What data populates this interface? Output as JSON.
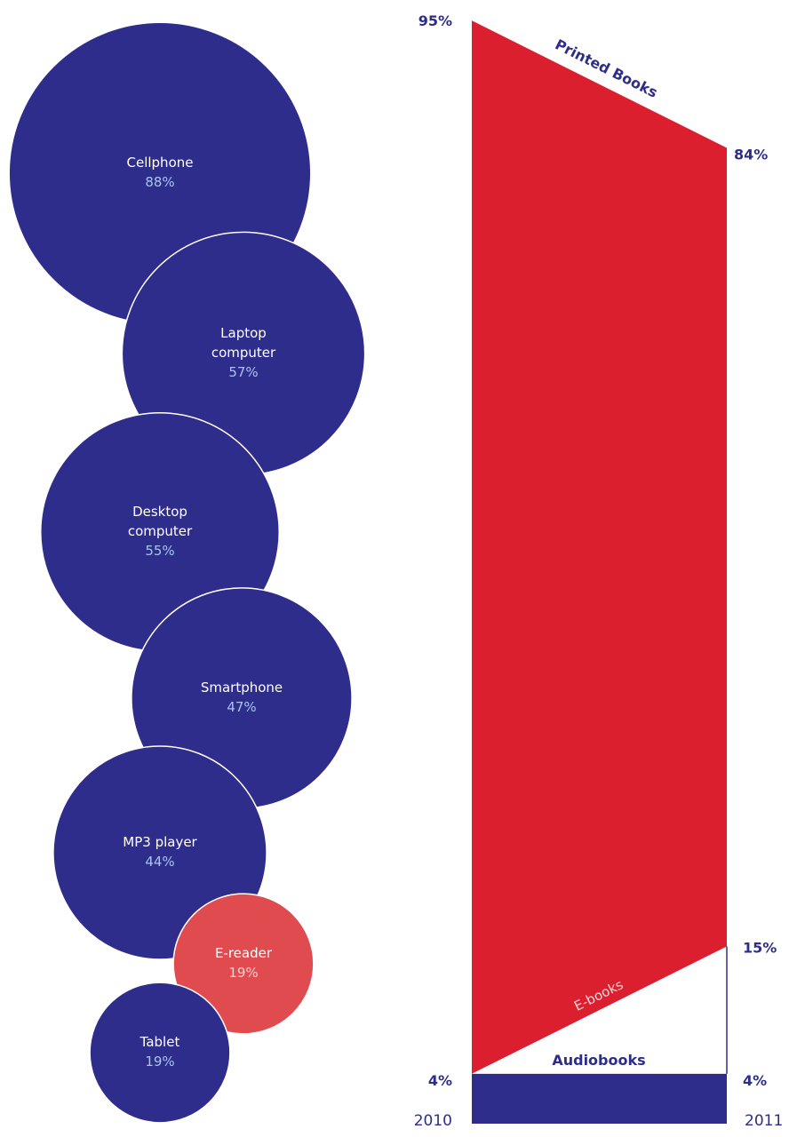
{
  "chart_data": [
    {
      "type": "bubble",
      "title": "",
      "unit": "%",
      "colors": {
        "default": "#2e2d8c",
        "highlight": "#e04b50",
        "label": "#ffffff",
        "value": "#a9c6ea"
      },
      "items": [
        {
          "label": [
            "Cellphone"
          ],
          "value": 88,
          "value_label": "88%",
          "highlight": false
        },
        {
          "label": [
            "Laptop",
            "computer"
          ],
          "value": 57,
          "value_label": "57%",
          "highlight": false
        },
        {
          "label": [
            "Desktop",
            "computer"
          ],
          "value": 55,
          "value_label": "55%",
          "highlight": false
        },
        {
          "label": [
            "Smartphone"
          ],
          "value": 47,
          "value_label": "47%",
          "highlight": false
        },
        {
          "label": [
            "MP3 player"
          ],
          "value": 44,
          "value_label": "44%",
          "highlight": false
        },
        {
          "label": [
            "E-reader"
          ],
          "value": 19,
          "value_label": "19%",
          "highlight": true
        },
        {
          "label": [
            "Tablet"
          ],
          "value": 19,
          "value_label": "19%",
          "highlight": false
        }
      ]
    },
    {
      "type": "area",
      "x": [
        "2010",
        "2011"
      ],
      "unit": "%",
      "series": [
        {
          "name": "Printed Books",
          "values": [
            95,
            84
          ],
          "value_labels": [
            "95%",
            "84%"
          ],
          "color": "#dc1f2e"
        },
        {
          "name": "E-books",
          "values": [
            4,
            15
          ],
          "value_labels": [
            "4%",
            "15%"
          ],
          "color": "#ffffff"
        },
        {
          "name": "Audiobooks",
          "values": [
            4,
            4
          ],
          "value_labels": [
            "4%",
            "4%"
          ],
          "color": "#2e2d8c"
        }
      ],
      "ylim": [
        0,
        95
      ]
    }
  ]
}
